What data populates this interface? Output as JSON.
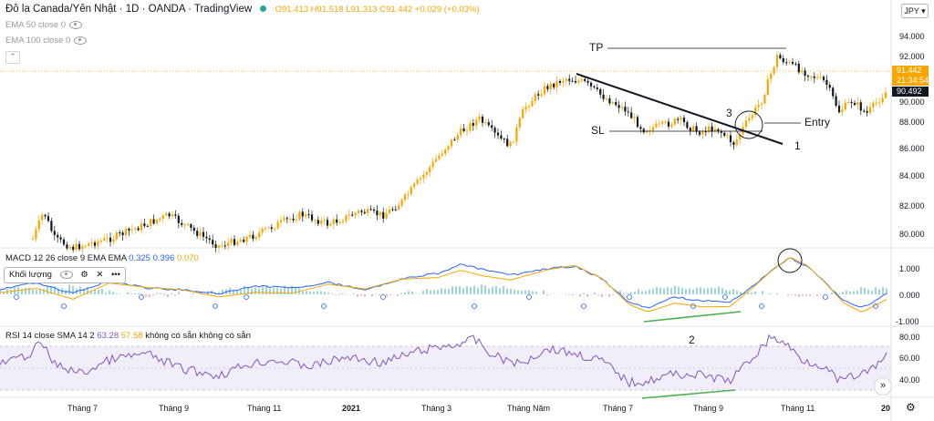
{
  "header": {
    "title": "Đô la Canada/Yên Nhật · 1D · OANDA · TradingView",
    "ohlc": {
      "o": "O91.413",
      "h": "H91.518",
      "l": "L91.313",
      "c": "C91.442",
      "chg": "+0.029 (+0.03%)"
    },
    "currency": "JPY"
  },
  "indicators": [
    {
      "label": "EMA 50 close 0",
      "icon": "eye-slash-icon"
    },
    {
      "label": "EMA 100 close 0",
      "icon": "eye-slash-icon"
    }
  ],
  "price_axis": {
    "ticks": [
      "94.000",
      "92.000",
      "90.000",
      "88.000",
      "86.000",
      "84.000",
      "82.000",
      "80.000"
    ],
    "current_price": "91.442",
    "countdown": "21:34:54",
    "last_price": "90.492"
  },
  "annotations": {
    "tp": "TP",
    "sl": "SL",
    "entry": "Entry",
    "n1": "1",
    "n2": "2",
    "n3": "3"
  },
  "macd": {
    "legend": "MACD 12 26 close 9 EMA EMA",
    "values": [
      "0.325",
      "0.396",
      "0.070"
    ],
    "value_colors": [
      "#2962ff",
      "#2962ff",
      "#f7a600"
    ],
    "ticks": [
      "1.000",
      "0.000",
      "-1.000"
    ]
  },
  "volume_box": {
    "label": "Khối lượng"
  },
  "rsi": {
    "legend": "RSI 14 close SMA 14 2",
    "values": [
      "63.28",
      "57.58",
      "không có sẵn",
      "không có sẵn"
    ],
    "ticks": [
      "80.00",
      "60.00",
      "40.00"
    ]
  },
  "time_axis": [
    "Tháng 7",
    "Tháng 9",
    "Tháng 11",
    "2021",
    "Tháng 3",
    "Tháng Năm",
    "Tháng 7",
    "Tháng 9",
    "Tháng 11",
    "20"
  ],
  "colors": {
    "up": "#f7a600",
    "down": "#131722",
    "macd": "#2962ff",
    "signal": "#f7a600",
    "rsi": "#7e57c2",
    "trend_green": "#4caf50"
  }
}
